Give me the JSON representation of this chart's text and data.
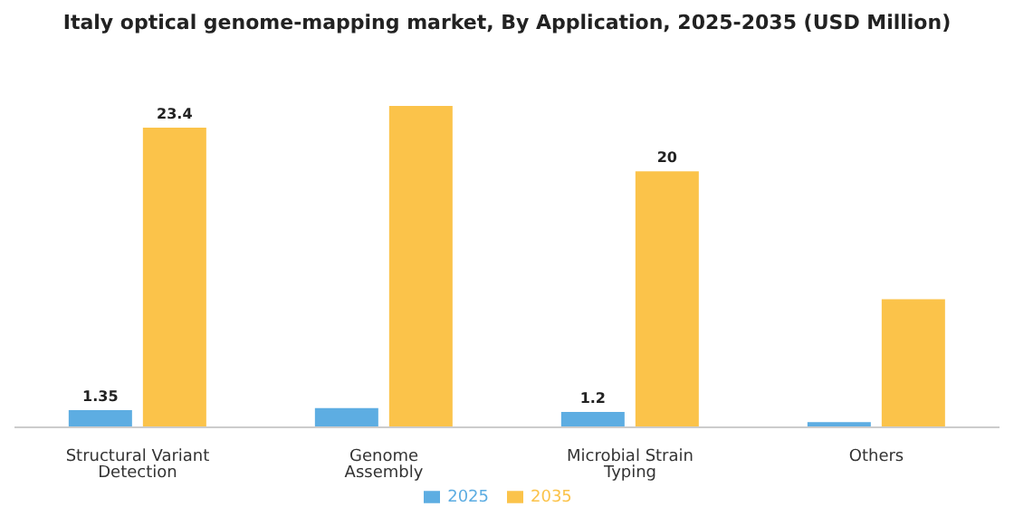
{
  "chart_data": {
    "type": "bar",
    "title": "Italy optical genome-mapping market, By Application, 2025-2035 (USD Million)",
    "categories": [
      "Structural Variant Detection",
      "Genome Assembly",
      "Microbial Strain Typing",
      "Others"
    ],
    "series": [
      {
        "name": "2025",
        "color": "#5dade2",
        "values": [
          1.35,
          1.5,
          1.2,
          0.4
        ],
        "value_labels": [
          "1.35",
          null,
          "1.2",
          null
        ]
      },
      {
        "name": "2035",
        "color": "#fbc34a",
        "values": [
          23.4,
          25.1,
          20,
          10.0
        ],
        "value_labels": [
          "23.4",
          null,
          "20",
          null
        ]
      }
    ],
    "legend": "bottom",
    "grid": false
  }
}
